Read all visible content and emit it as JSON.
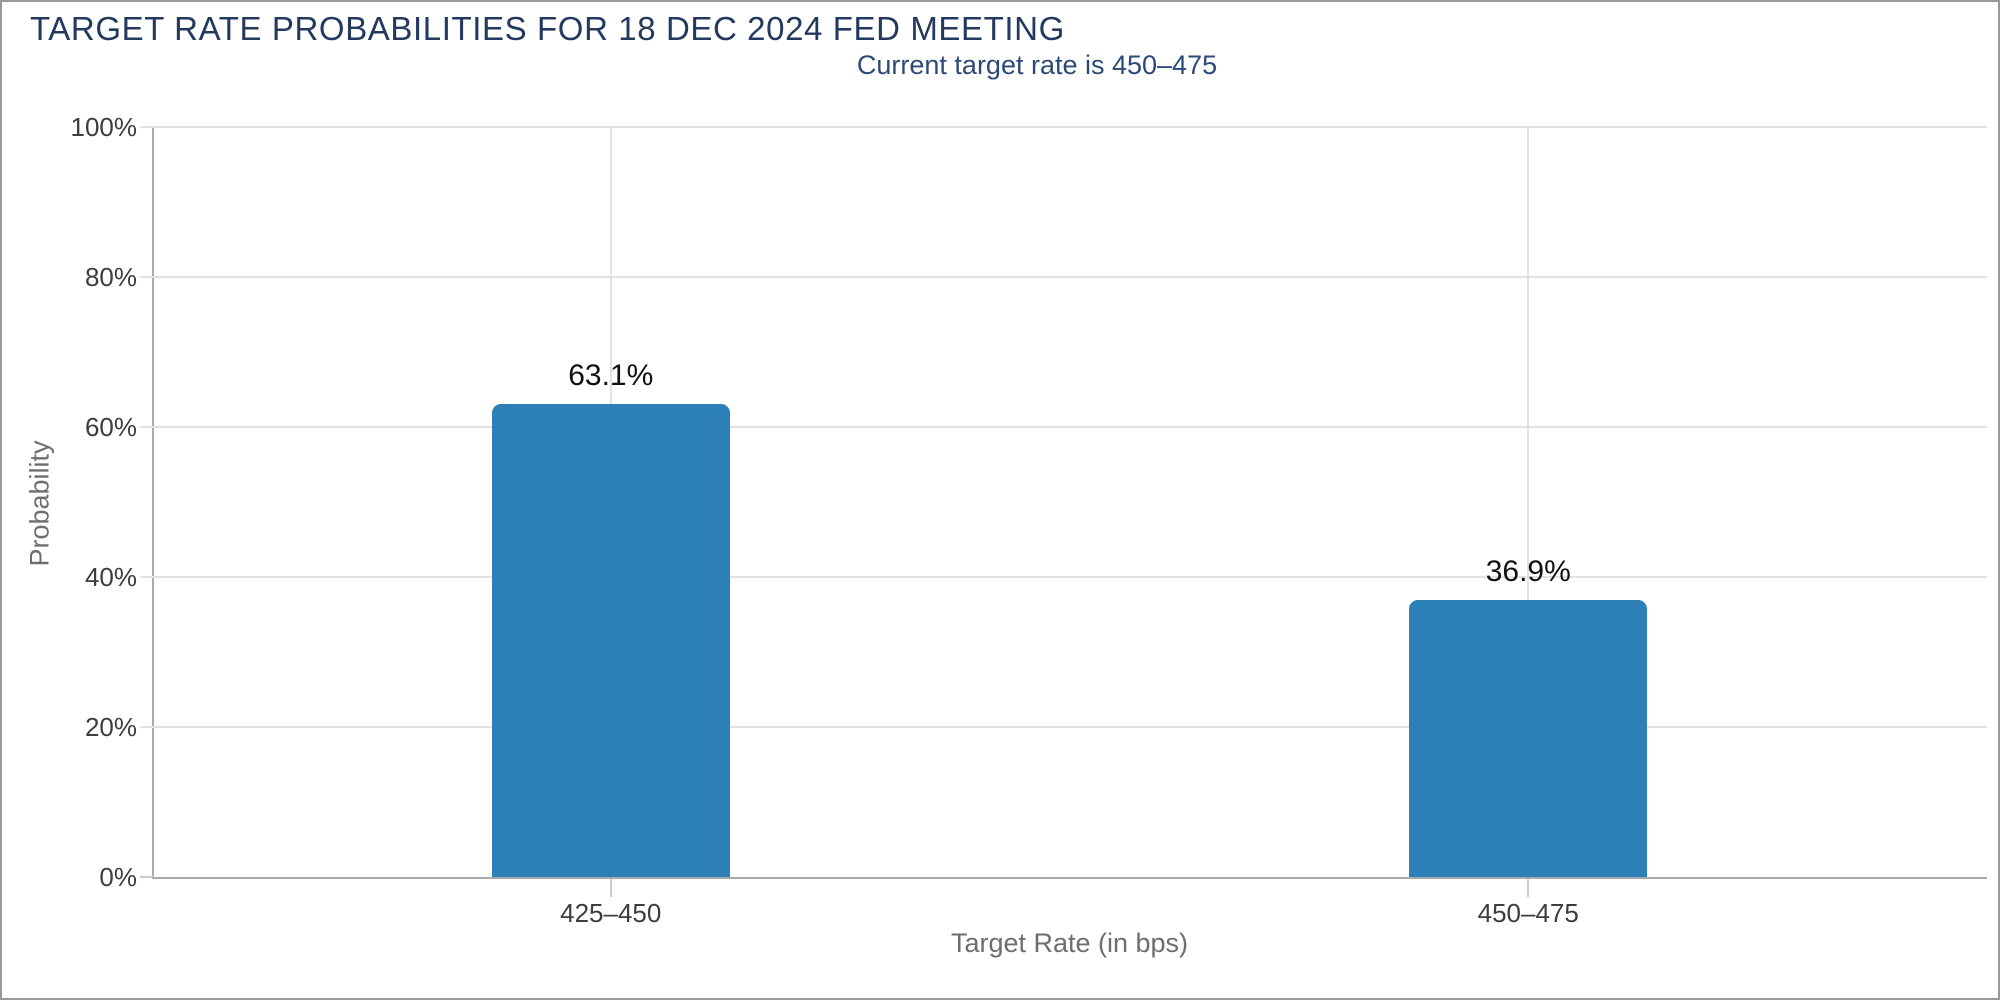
{
  "header": {
    "title": "TARGET RATE PROBABILITIES FOR 18 DEC 2024 FED MEETING",
    "subtitle": "Current target rate is 450–475"
  },
  "chart_data": {
    "type": "bar",
    "title": "TARGET RATE PROBABILITIES FOR 18 DEC 2024 FED MEETING",
    "subtitle": "Current target rate is 450–475",
    "categories": [
      "425–450",
      "450–475"
    ],
    "values": [
      63.1,
      36.9
    ],
    "value_labels": [
      "63.1%",
      "36.9%"
    ],
    "xlabel": "Target Rate (in bps)",
    "ylabel": "Probability",
    "ylim": [
      0,
      100
    ],
    "ytick_step": 20,
    "ytick_labels": [
      "0%",
      "20%",
      "40%",
      "60%",
      "80%",
      "100%"
    ],
    "grid": "horizontal lines at each y tick, vertical line at each bar center",
    "legend": "none"
  },
  "colors": {
    "title": "#24395e",
    "subtitle": "#2c4a78",
    "bar": "#2d7fb8",
    "bar_label": "#111111",
    "tick_label": "#3d3d3d",
    "axis_title": "#6e6e6e",
    "gridline": "#e2e2e2",
    "axis_line": "#aaaaaa",
    "tick_mark": "#cccccc",
    "page_border": "#9a9a9a",
    "background": "#ffffff"
  }
}
